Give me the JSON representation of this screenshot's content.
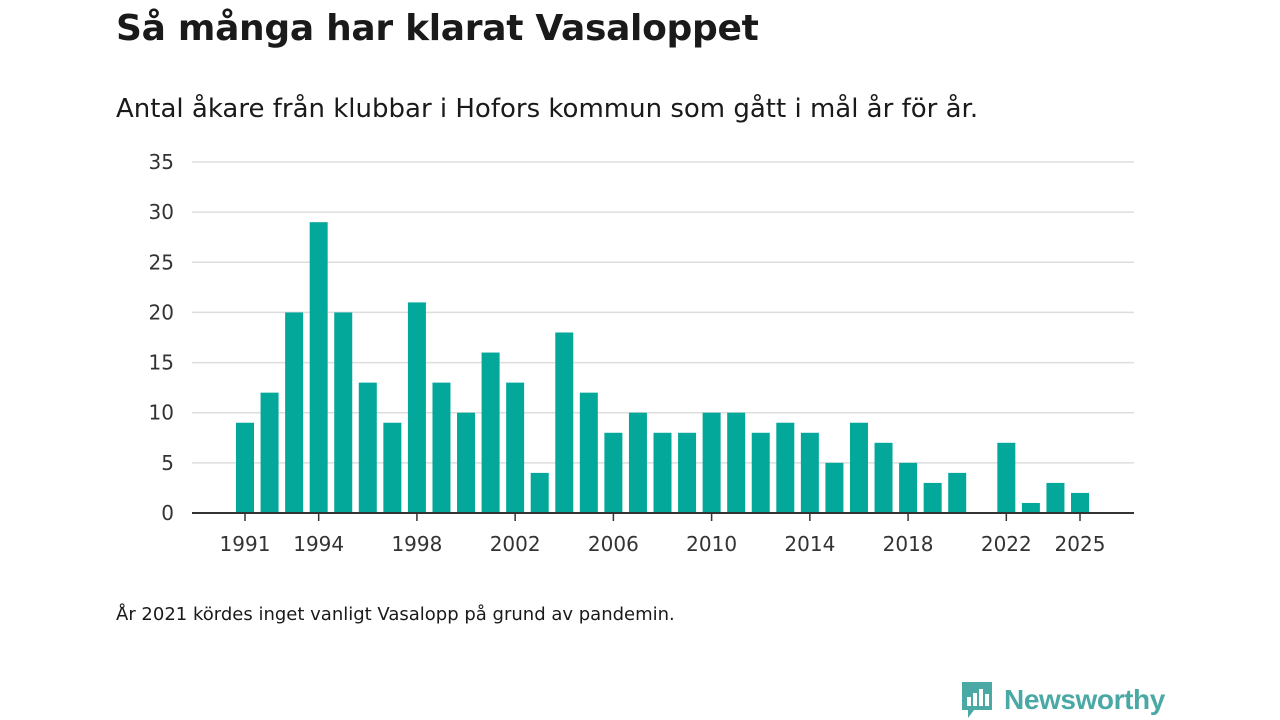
{
  "title": "Så många har klarat Vasaloppet",
  "subtitle": "Antal åkare från klubbar i Hofors kommun som gått i mål år för år.",
  "note": "År 2021 kördes inget vanligt Vasalopp på grund av pandemin.",
  "brand": {
    "name": "Newsworthy",
    "icon": "newsworthy-logo-icon",
    "color": "#4aa9a4"
  },
  "colors": {
    "bar": "#04a89b",
    "grid": "#dddddd",
    "axis": "#333333"
  },
  "chart_data": {
    "type": "bar",
    "title": "Så många har klarat Vasaloppet",
    "xlabel": "",
    "ylabel": "",
    "ylim": [
      0,
      35
    ],
    "yticks": [
      0,
      5,
      10,
      15,
      20,
      25,
      30,
      35
    ],
    "xticks": [
      1991,
      1994,
      1998,
      2002,
      2006,
      2010,
      2014,
      2018,
      2022,
      2025
    ],
    "grid": true,
    "categories": [
      1991,
      1992,
      1993,
      1994,
      1995,
      1996,
      1997,
      1998,
      1999,
      2000,
      2001,
      2002,
      2003,
      2004,
      2005,
      2006,
      2007,
      2008,
      2009,
      2010,
      2011,
      2012,
      2013,
      2014,
      2015,
      2016,
      2017,
      2018,
      2019,
      2020,
      2021,
      2022,
      2023,
      2024,
      2025
    ],
    "values": [
      9,
      12,
      20,
      29,
      20,
      13,
      9,
      21,
      13,
      10,
      16,
      13,
      4,
      18,
      12,
      8,
      10,
      8,
      8,
      10,
      10,
      8,
      9,
      8,
      5,
      9,
      7,
      5,
      3,
      4,
      null,
      7,
      1,
      3,
      2
    ]
  }
}
